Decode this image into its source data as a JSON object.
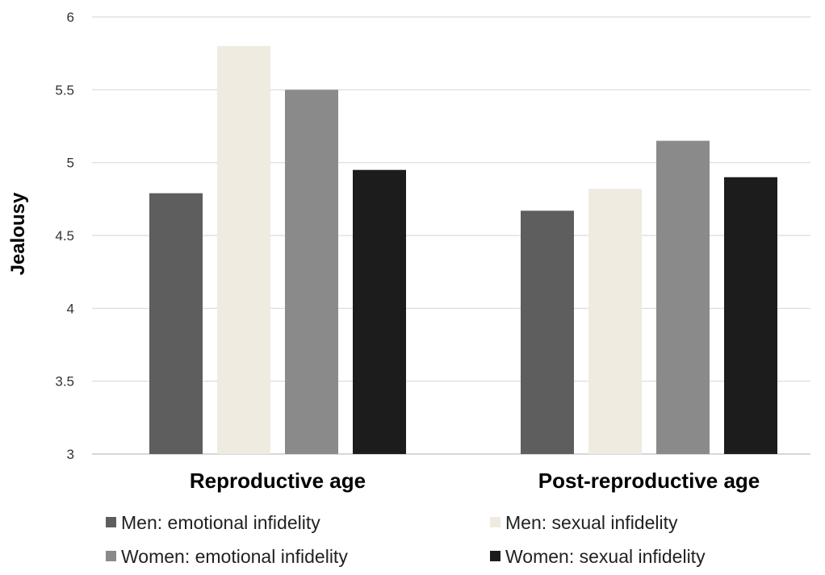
{
  "chart_data": {
    "type": "bar",
    "title": "",
    "xlabel": "",
    "ylabel": "Jealousy",
    "ylim": [
      3,
      6
    ],
    "yticks": [
      "3",
      "3.5",
      "4",
      "4.5",
      "5",
      "5.5",
      "6"
    ],
    "grid": true,
    "legend_position": "bottom",
    "categories": [
      "Reproductive age",
      "Post-reproductive age"
    ],
    "series": [
      {
        "name": "Men: emotional infidelity",
        "color": "#5e5e5e",
        "values": [
          4.79,
          4.67
        ]
      },
      {
        "name": "Men: sexual infidelity",
        "color": "#efebe0",
        "values": [
          5.8,
          4.82
        ]
      },
      {
        "name": "Women: emotional infidelity",
        "color": "#8a8a8a",
        "values": [
          5.5,
          5.15
        ]
      },
      {
        "name": "Women: sexual infidelity",
        "color": "#1c1c1c",
        "values": [
          4.95,
          4.9
        ]
      }
    ]
  }
}
